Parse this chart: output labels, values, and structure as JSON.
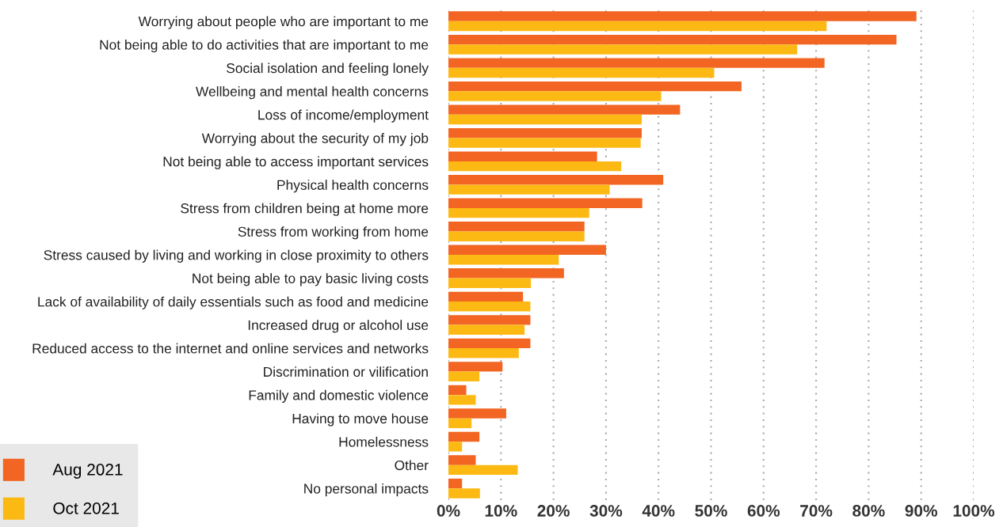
{
  "chart_data": {
    "type": "bar",
    "orientation": "horizontal",
    "categories": [
      "Worrying about people who are important to me",
      "Not being able to do activities that are important to me",
      "Social isolation and feeling lonely",
      "Wellbeing and mental health concerns",
      "Loss of income/employment",
      "Worrying about the security of my job",
      "Not being able to access important services",
      "Physical health concerns",
      "Stress from children being at home more",
      "Stress from working from home",
      "Stress caused by living and working in close proximity to others",
      "Not being able to pay basic living costs",
      "Lack of availability of daily essentials such as food and medicine",
      "Increased drug or alcohol use",
      "Reduced access to the internet and online services and networks",
      "Discrimination or vilification",
      "Family and domestic violence",
      "Having to move house",
      "Homelessness",
      "Other",
      "No personal impacts"
    ],
    "series": [
      {
        "name": "Aug 2021",
        "color": "#f26522",
        "values": [
          89.1,
          85.3,
          71.6,
          55.8,
          44.1,
          36.8,
          28.3,
          40.9,
          36.9,
          25.9,
          30.0,
          22.0,
          14.2,
          15.6,
          15.6,
          10.3,
          3.4,
          11.0,
          5.9,
          5.2,
          2.6
        ]
      },
      {
        "name": "Oct 2021",
        "color": "#fdb913",
        "values": [
          72.0,
          66.4,
          50.6,
          40.5,
          36.8,
          36.6,
          32.9,
          30.7,
          26.8,
          25.9,
          21.0,
          15.7,
          15.6,
          14.5,
          13.4,
          5.9,
          5.2,
          4.4,
          2.6,
          13.2,
          6.0
        ]
      }
    ],
    "xlim": [
      0,
      100
    ],
    "xticks": [
      {
        "value": 0,
        "label": "0%"
      },
      {
        "value": 10,
        "label": "10%"
      },
      {
        "value": 20,
        "label": "20%"
      },
      {
        "value": 30,
        "label": "30%"
      },
      {
        "value": 40,
        "label": "40%"
      },
      {
        "value": 50,
        "label": "50%"
      },
      {
        "value": 60,
        "label": "60%"
      },
      {
        "value": 70,
        "label": "70%"
      },
      {
        "value": 80,
        "label": "80%"
      },
      {
        "value": 90,
        "label": "90%"
      },
      {
        "value": 100,
        "label": "100%"
      }
    ],
    "grid": "x",
    "legend": "bottom left"
  }
}
